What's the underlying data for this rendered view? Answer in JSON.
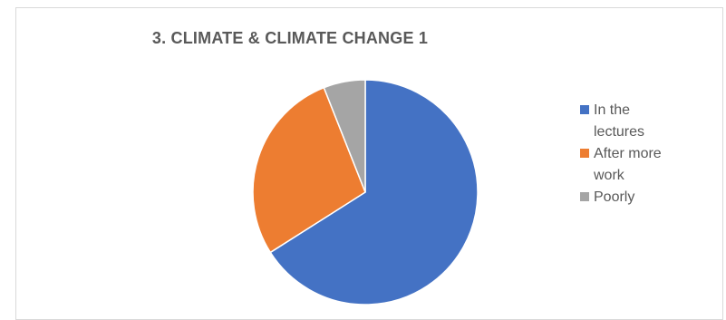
{
  "chart_data": {
    "type": "pie",
    "title": "3. CLIMATE & CLIMATE CHANGE 1",
    "categories": [
      "In the lectures",
      "After more work",
      "Poorly"
    ],
    "values": [
      66,
      28,
      6
    ],
    "colors": [
      "#4472c4",
      "#ed7d31",
      "#a5a5a5"
    ],
    "legend_position": "right"
  }
}
